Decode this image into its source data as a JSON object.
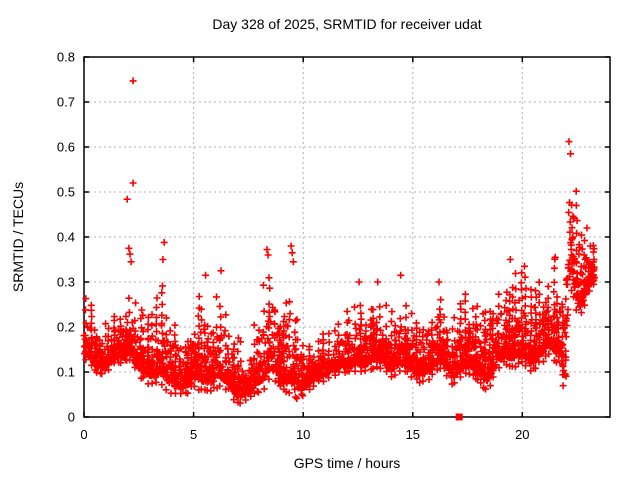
{
  "chart_data": {
    "type": "scatter",
    "title": "Day 328 of 2025, SRMTID for receiver udat",
    "xlabel": "GPS time / hours",
    "ylabel": "SRMTID / TECUs",
    "xlim": [
      0,
      24
    ],
    "ylim": [
      0,
      0.8
    ],
    "xticks": [
      0,
      5,
      10,
      15,
      20
    ],
    "xtick_labels": [
      "0",
      "5",
      "10",
      "15",
      "20"
    ],
    "yticks": [
      0,
      0.1,
      0.2,
      0.3,
      0.4,
      0.5,
      0.6,
      0.7,
      0.8
    ],
    "ytick_labels": [
      "0",
      "0.1",
      "0.2",
      "0.3",
      "0.4",
      "0.5",
      "0.6",
      "0.7",
      "0.8"
    ],
    "grid": true,
    "grid_color": "#b0b0b0",
    "marker": "plus",
    "marker_color": "#ff0000",
    "series_name": "SRMTID",
    "t_end": 23.3,
    "seed": 1234567,
    "band_envelope": [
      [
        0.0,
        0.13,
        0.27
      ],
      [
        0.3,
        0.12,
        0.26
      ],
      [
        0.6,
        0.1,
        0.22
      ],
      [
        1.0,
        0.1,
        0.21
      ],
      [
        1.4,
        0.12,
        0.24
      ],
      [
        1.8,
        0.12,
        0.27
      ],
      [
        2.1,
        0.13,
        0.3
      ],
      [
        2.4,
        0.1,
        0.28
      ],
      [
        2.8,
        0.08,
        0.24
      ],
      [
        3.2,
        0.07,
        0.26
      ],
      [
        3.5,
        0.08,
        0.31
      ],
      [
        3.8,
        0.06,
        0.28
      ],
      [
        4.2,
        0.05,
        0.26
      ],
      [
        4.6,
        0.05,
        0.21
      ],
      [
        5.0,
        0.07,
        0.24
      ],
      [
        5.4,
        0.06,
        0.29
      ],
      [
        5.8,
        0.06,
        0.25
      ],
      [
        6.2,
        0.07,
        0.31
      ],
      [
        6.6,
        0.06,
        0.24
      ],
      [
        7.0,
        0.03,
        0.18
      ],
      [
        7.4,
        0.04,
        0.14
      ],
      [
        7.7,
        0.05,
        0.2
      ],
      [
        8.1,
        0.06,
        0.28
      ],
      [
        8.45,
        0.08,
        0.37
      ],
      [
        8.8,
        0.08,
        0.3
      ],
      [
        9.1,
        0.06,
        0.25
      ],
      [
        9.45,
        0.05,
        0.37
      ],
      [
        9.7,
        0.04,
        0.3
      ],
      [
        10.0,
        0.05,
        0.18
      ],
      [
        10.4,
        0.07,
        0.17
      ],
      [
        10.8,
        0.08,
        0.19
      ],
      [
        11.2,
        0.09,
        0.19
      ],
      [
        11.6,
        0.1,
        0.21
      ],
      [
        12.0,
        0.1,
        0.24
      ],
      [
        12.4,
        0.1,
        0.27
      ],
      [
        12.8,
        0.1,
        0.28
      ],
      [
        13.2,
        0.11,
        0.29
      ],
      [
        13.6,
        0.11,
        0.28
      ],
      [
        14.0,
        0.09,
        0.24
      ],
      [
        14.4,
        0.1,
        0.3
      ],
      [
        14.8,
        0.1,
        0.26
      ],
      [
        15.2,
        0.08,
        0.22
      ],
      [
        15.6,
        0.08,
        0.24
      ],
      [
        16.0,
        0.1,
        0.28
      ],
      [
        16.4,
        0.11,
        0.28
      ],
      [
        16.8,
        0.07,
        0.25
      ],
      [
        17.2,
        0.09,
        0.26
      ],
      [
        17.6,
        0.1,
        0.29
      ],
      [
        18.0,
        0.08,
        0.25
      ],
      [
        18.4,
        0.06,
        0.27
      ],
      [
        18.8,
        0.1,
        0.3
      ],
      [
        19.2,
        0.12,
        0.31
      ],
      [
        19.6,
        0.11,
        0.33
      ],
      [
        20.0,
        0.12,
        0.33
      ],
      [
        20.4,
        0.1,
        0.3
      ],
      [
        20.8,
        0.12,
        0.32
      ],
      [
        21.2,
        0.14,
        0.34
      ],
      [
        21.6,
        0.12,
        0.36
      ],
      [
        21.95,
        0.05,
        0.42
      ],
      [
        22.15,
        0.3,
        0.6
      ],
      [
        22.35,
        0.26,
        0.54
      ],
      [
        22.6,
        0.22,
        0.48
      ],
      [
        22.85,
        0.25,
        0.44
      ],
      [
        23.05,
        0.28,
        0.4
      ],
      [
        23.3,
        0.3,
        0.38
      ]
    ],
    "outliers": [
      [
        2.24,
        0.747
      ],
      [
        2.24,
        0.52
      ],
      [
        1.97,
        0.484
      ],
      [
        2.05,
        0.375
      ],
      [
        2.1,
        0.362
      ],
      [
        2.15,
        0.345
      ],
      [
        3.66,
        0.388
      ],
      [
        3.6,
        0.35
      ],
      [
        5.55,
        0.315
      ],
      [
        6.25,
        0.325
      ],
      [
        8.35,
        0.372
      ],
      [
        8.4,
        0.36
      ],
      [
        9.45,
        0.38
      ],
      [
        9.5,
        0.365
      ],
      [
        9.55,
        0.345
      ],
      [
        12.55,
        0.3
      ],
      [
        13.4,
        0.3
      ],
      [
        14.45,
        0.315
      ],
      [
        16.2,
        0.3
      ],
      [
        19.45,
        0.35
      ],
      [
        20.1,
        0.335
      ],
      [
        21.5,
        0.355
      ],
      [
        22.13,
        0.612
      ],
      [
        22.2,
        0.585
      ],
      [
        22.95,
        0.42
      ],
      [
        23.1,
        0.38
      ]
    ],
    "special_points": [
      {
        "x": 17.12,
        "y": 0.0,
        "marker": "filled-square",
        "color": "#ff0000"
      }
    ]
  }
}
